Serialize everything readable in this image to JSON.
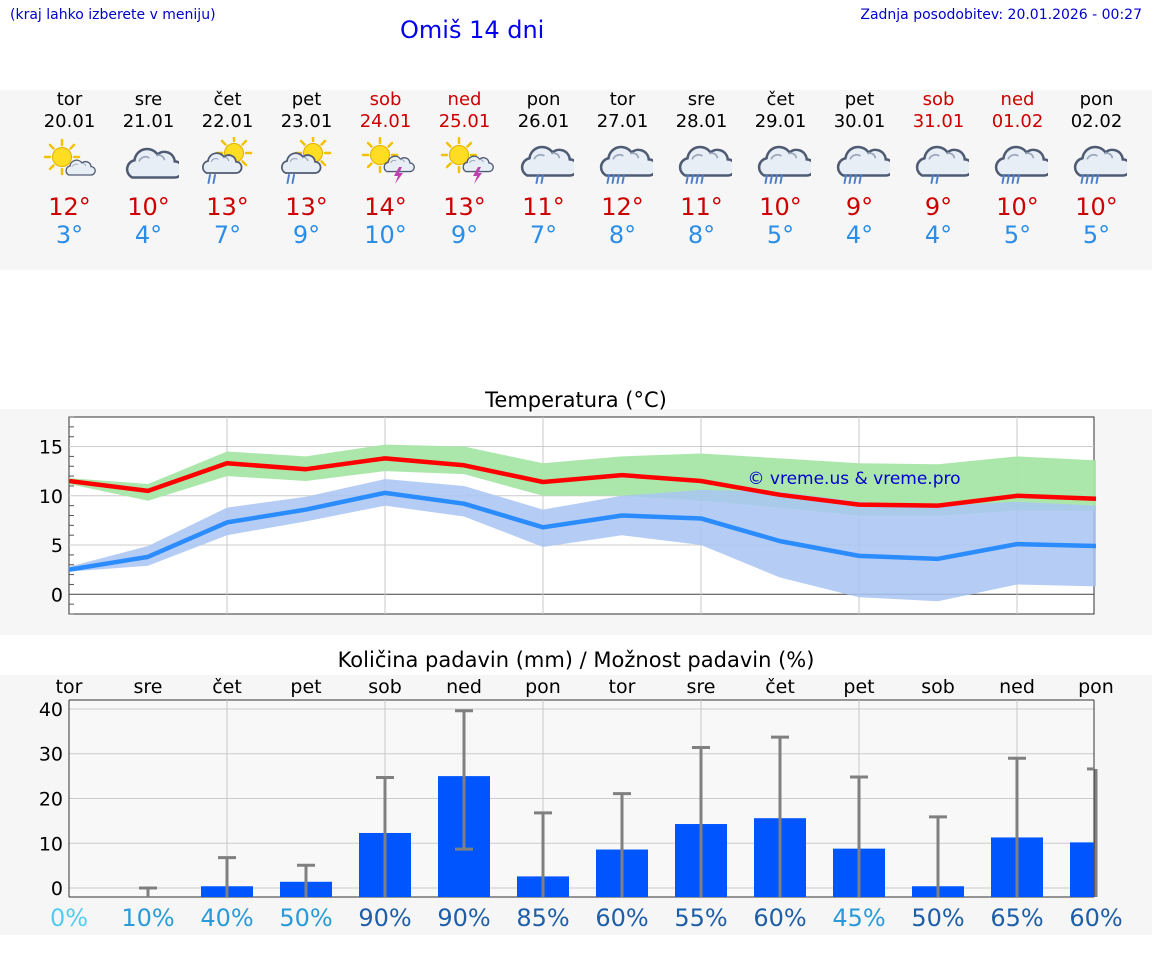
{
  "header": {
    "hint": "(kraj lahko izberete v meniju)",
    "title": "Omiš 14 dni",
    "updated": "Zadnja posodobitev: 20.01.2026 - 00:27"
  },
  "days": [
    {
      "weekday": "tor",
      "date": "20.01",
      "icon": "partly-sunny-cloud-icon",
      "max": "12°",
      "min": "3°",
      "weekend": false
    },
    {
      "weekday": "sre",
      "date": "21.01",
      "icon": "cloud-icon",
      "max": "10°",
      "min": "4°",
      "weekend": false
    },
    {
      "weekday": "čet",
      "date": "22.01",
      "icon": "sun-cloud-rain-icon",
      "max": "13°",
      "min": "7°",
      "weekend": false
    },
    {
      "weekday": "pet",
      "date": "23.01",
      "icon": "sun-cloud-rain-icon",
      "max": "13°",
      "min": "9°",
      "weekend": false
    },
    {
      "weekday": "sob",
      "date": "24.01",
      "icon": "sun-thunderstorm-icon",
      "max": "14°",
      "min": "10°",
      "weekend": true
    },
    {
      "weekday": "ned",
      "date": "25.01",
      "icon": "sun-thunderstorm-icon",
      "max": "13°",
      "min": "9°",
      "weekend": true
    },
    {
      "weekday": "pon",
      "date": "26.01",
      "icon": "cloud-rain-icon",
      "max": "11°",
      "min": "7°",
      "weekend": false
    },
    {
      "weekday": "tor",
      "date": "27.01",
      "icon": "cloud-heavy-rain-icon",
      "max": "12°",
      "min": "8°",
      "weekend": false
    },
    {
      "weekday": "sre",
      "date": "28.01",
      "icon": "cloud-heavy-rain-icon",
      "max": "11°",
      "min": "8°",
      "weekend": false
    },
    {
      "weekday": "čet",
      "date": "29.01",
      "icon": "cloud-heavy-rain-icon",
      "max": "10°",
      "min": "5°",
      "weekend": false
    },
    {
      "weekday": "pet",
      "date": "30.01",
      "icon": "cloud-heavy-rain-icon",
      "max": "9°",
      "min": "4°",
      "weekend": false
    },
    {
      "weekday": "sob",
      "date": "31.01",
      "icon": "cloud-rain-icon",
      "max": "9°",
      "min": "4°",
      "weekend": true
    },
    {
      "weekday": "ned",
      "date": "01.02",
      "icon": "cloud-heavy-rain-icon",
      "max": "10°",
      "min": "5°",
      "weekend": true
    },
    {
      "weekday": "pon",
      "date": "02.02",
      "icon": "cloud-heavy-rain-icon",
      "max": "10°",
      "min": "5°",
      "weekend": false
    }
  ],
  "colors": {
    "weekend": "#cc0000",
    "max_line": "#ff0000",
    "min_line": "#2b8cff",
    "max_band": "#a6e6a6",
    "min_band": "#a8c4f2",
    "overlap_band": "#80c4a8",
    "bar": "#0055ff",
    "whisker": "#808080"
  },
  "chart_data": [
    {
      "type": "line",
      "title": "Temperatura (°C)",
      "watermark": "© vreme.us & vreme.pro",
      "categories": [
        "tor",
        "sre",
        "čet",
        "pet",
        "sob",
        "ned",
        "pon",
        "tor",
        "sre",
        "čet",
        "pet",
        "sob",
        "ned",
        "pon"
      ],
      "ylim": [
        -2,
        18
      ],
      "yticks": [
        0,
        5,
        10,
        15
      ],
      "series": [
        {
          "name": "max",
          "values": [
            11.5,
            10.5,
            13.3,
            12.7,
            13.8,
            13.1,
            11.4,
            12.1,
            11.5,
            10.1,
            9.1,
            9.0,
            10.0,
            9.7
          ],
          "band_low": [
            11.2,
            9.5,
            12.0,
            11.5,
            12.5,
            12.2,
            10.0,
            10.0,
            9.5,
            8.8,
            8.0,
            8.0,
            8.5,
            8.5
          ],
          "band_high": [
            11.8,
            11.2,
            14.5,
            14.0,
            15.2,
            15.0,
            13.3,
            14.0,
            14.3,
            13.8,
            13.3,
            13.2,
            14.0,
            13.6
          ]
        },
        {
          "name": "min",
          "values": [
            2.5,
            3.8,
            7.3,
            8.6,
            10.3,
            9.2,
            6.8,
            8.0,
            7.7,
            5.4,
            3.9,
            3.6,
            5.1,
            4.9
          ],
          "band_low": [
            2.3,
            2.9,
            6.0,
            7.4,
            9.0,
            7.9,
            4.8,
            6.0,
            5.0,
            1.7,
            -0.3,
            -0.7,
            1.0,
            0.8
          ],
          "band_high": [
            2.8,
            4.9,
            8.8,
            9.9,
            11.7,
            11.0,
            8.6,
            10.0,
            10.6,
            10.4,
            9.4,
            9.0,
            9.4,
            9.0
          ]
        }
      ]
    },
    {
      "type": "bar",
      "title": "Količina padavin (mm) / Možnost padavin (%)",
      "categories": [
        "tor",
        "sre",
        "čet",
        "pet",
        "sob",
        "ned",
        "pon",
        "tor",
        "sre",
        "čet",
        "pet",
        "sob",
        "ned",
        "pon"
      ],
      "ylim": [
        -2,
        42
      ],
      "yticks": [
        0,
        10,
        20,
        30,
        40
      ],
      "values": [
        0,
        0,
        0.4,
        1.4,
        12.3,
        25.0,
        2.6,
        8.6,
        14.3,
        15.6,
        8.8,
        0.4,
        11.3,
        10.2
      ],
      "whisker_low": [
        null,
        0,
        0,
        0,
        0,
        8.7,
        0,
        0,
        0,
        0,
        0,
        0,
        0,
        0
      ],
      "whisker_high": [
        null,
        0,
        6.8,
        5.1,
        24.7,
        39.6,
        16.8,
        21.1,
        31.4,
        33.7,
        24.8,
        15.9,
        29.0,
        26.6
      ],
      "probability": [
        "0%",
        "10%",
        "40%",
        "50%",
        "90%",
        "90%",
        "85%",
        "60%",
        "55%",
        "60%",
        "45%",
        "50%",
        "65%",
        "60%"
      ],
      "probability_colors": [
        "#55ccee",
        "#2a9bd8",
        "#2a9bd8",
        "#2a9bd8",
        "#1f5fa8",
        "#1f5fa8",
        "#1f5fa8",
        "#1f5fa8",
        "#1f5fa8",
        "#1f5fa8",
        "#2a9bd8",
        "#1f5fa8",
        "#1f5fa8",
        "#1f5fa8"
      ]
    }
  ]
}
